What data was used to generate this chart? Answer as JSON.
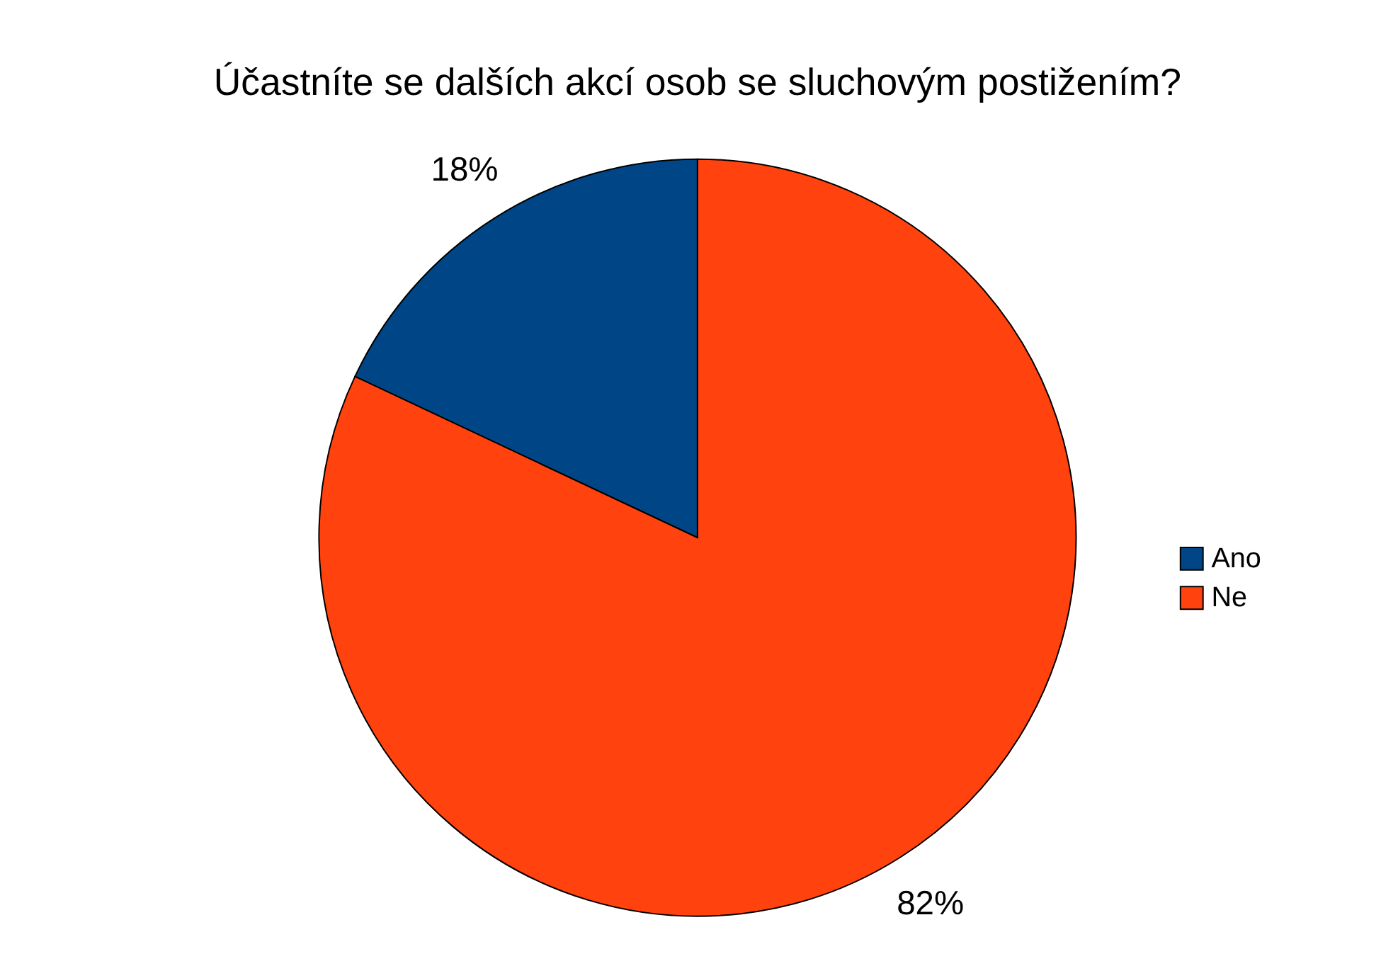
{
  "chart_data": {
    "type": "pie",
    "title": "Účastníte se dalších akcí osob se sluchovým postižením?",
    "categories": [
      "Ano",
      "Ne"
    ],
    "values": [
      18,
      82
    ],
    "colors": [
      "#004586",
      "#ff420e"
    ],
    "value_labels": [
      "18%",
      "82%"
    ],
    "legend": "right"
  }
}
